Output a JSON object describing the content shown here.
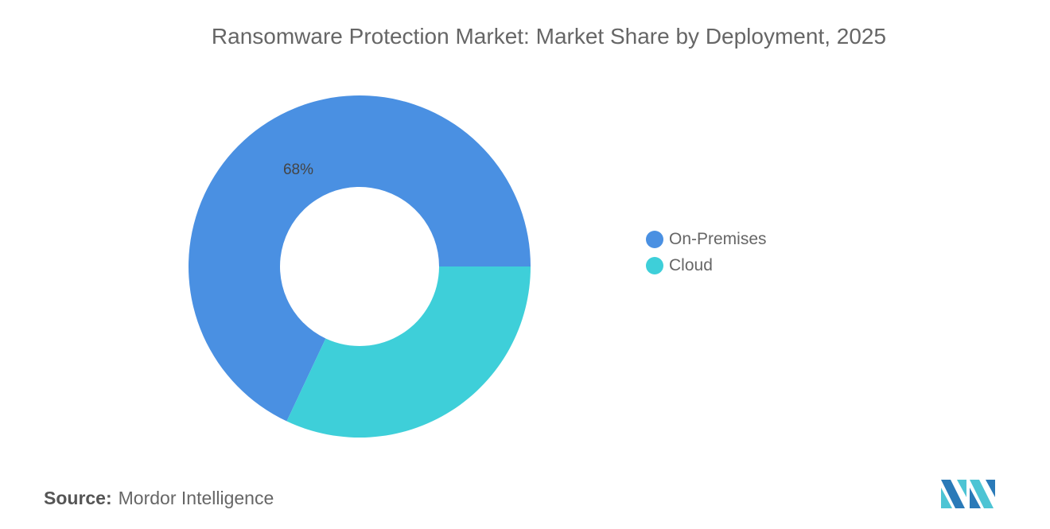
{
  "chart_data": {
    "type": "pie",
    "variant": "donut",
    "title": "Ransomware Protection Market: Market Share by Deployment, 2025",
    "categories": [
      "On-Premises",
      "Cloud"
    ],
    "values": [
      68,
      32
    ],
    "unit": "%",
    "data_labels": [
      "68%",
      ""
    ],
    "colors": [
      "#4A90E2",
      "#3ECFD9"
    ],
    "legend_position": "right"
  },
  "source": {
    "label": "Source:",
    "text": "Mordor Intelligence"
  },
  "logo_colors": [
    "#2A7AB8",
    "#4DC4D4"
  ]
}
